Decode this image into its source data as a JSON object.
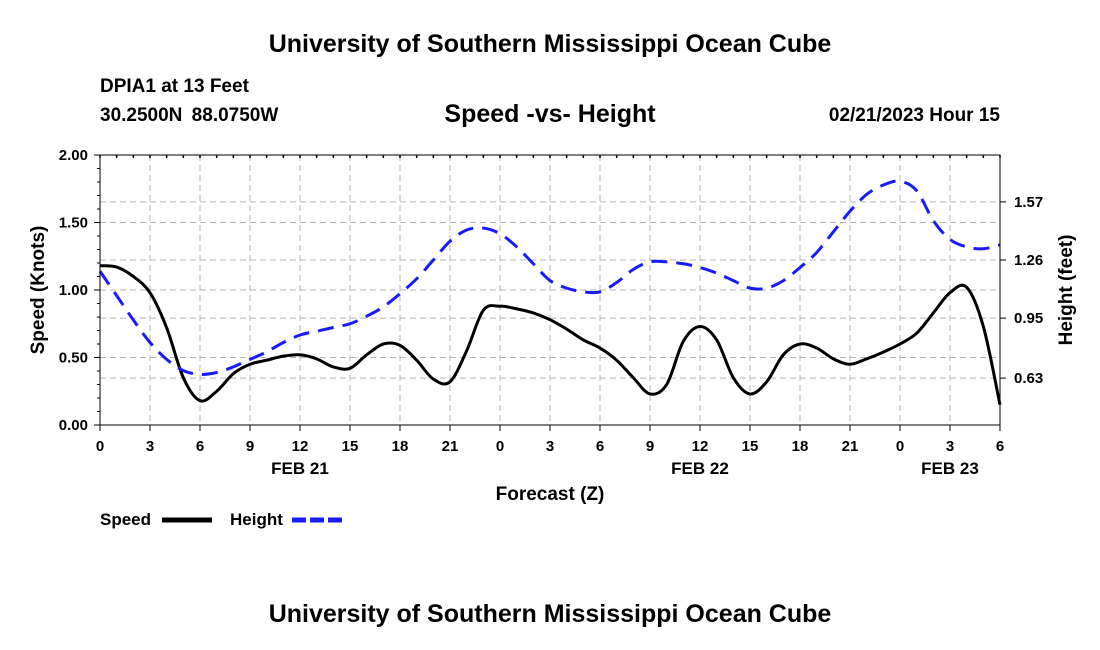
{
  "header": {
    "title": "University of Southern Mississippi Ocean Cube",
    "station": "DPIA1 at 13 Feet",
    "coordinates": "30.2500N  88.0750W",
    "chart_title": "Speed -vs- Height",
    "datetime": "02/21/2023 Hour 15"
  },
  "footer": {
    "title": "University of Southern Mississippi Ocean Cube"
  },
  "chart_data": {
    "type": "line",
    "title": "Speed -vs- Height",
    "xlabel": "Forecast (Z)",
    "ylabel": "Speed (Knots)",
    "y2label": "Height (feet)",
    "x_range": [
      0,
      54
    ],
    "ylim": [
      0,
      2.0
    ],
    "y2lim": [
      0.38,
      1.82
    ],
    "grid": true,
    "x_ticks": [
      0,
      3,
      6,
      9,
      12,
      15,
      18,
      21,
      24,
      27,
      30,
      33,
      36,
      39,
      42,
      45,
      48,
      51,
      54
    ],
    "x_tick_labels": [
      "0",
      "3",
      "6",
      "9",
      "12",
      "15",
      "18",
      "21",
      "0",
      "3",
      "6",
      "9",
      "12",
      "15",
      "18",
      "21",
      "0",
      "3",
      "6"
    ],
    "y_ticks": [
      0.0,
      0.5,
      1.0,
      1.5,
      2.0
    ],
    "y_tick_labels": [
      "0.00",
      "0.50",
      "1.00",
      "1.50",
      "2.00"
    ],
    "y2_ticks": [
      0.63,
      0.95,
      1.26,
      1.57
    ],
    "y2_tick_labels": [
      "0.63",
      "0.95",
      "1.26",
      "1.57"
    ],
    "date_labels": [
      {
        "x": 12,
        "label": "FEB 21"
      },
      {
        "x": 36,
        "label": "FEB 22"
      },
      {
        "x": 51,
        "label": "FEB 23"
      }
    ],
    "legend_position": "bottom-left",
    "series": [
      {
        "name": "Speed",
        "axis": "left",
        "color": "#000000",
        "style": "solid",
        "x": [
          0,
          1,
          2,
          3,
          4,
          5,
          6,
          7,
          8,
          9,
          10,
          11,
          12,
          13,
          14,
          15,
          16,
          17,
          18,
          19,
          20,
          21,
          22,
          23,
          24,
          25,
          26,
          27,
          28,
          29,
          30,
          31,
          32,
          33,
          34,
          35,
          36,
          37,
          38,
          39,
          40,
          41,
          42,
          43,
          44,
          45,
          46,
          47,
          48,
          49,
          50,
          51,
          52,
          53,
          54
        ],
        "values": [
          1.18,
          1.17,
          1.1,
          0.98,
          0.72,
          0.35,
          0.18,
          0.25,
          0.38,
          0.45,
          0.48,
          0.51,
          0.52,
          0.49,
          0.43,
          0.42,
          0.52,
          0.6,
          0.59,
          0.48,
          0.34,
          0.32,
          0.55,
          0.85,
          0.88,
          0.86,
          0.83,
          0.78,
          0.71,
          0.63,
          0.57,
          0.48,
          0.35,
          0.23,
          0.3,
          0.62,
          0.73,
          0.63,
          0.35,
          0.23,
          0.32,
          0.52,
          0.6,
          0.57,
          0.49,
          0.45,
          0.49,
          0.54,
          0.6,
          0.68,
          0.83,
          0.98,
          1.02,
          0.73,
          0.15
        ]
      },
      {
        "name": "Height",
        "axis": "right",
        "color": "#1a1aff",
        "style": "dashed",
        "x": [
          0,
          1,
          2,
          3,
          4,
          5,
          6,
          7,
          8,
          9,
          10,
          11,
          12,
          13,
          14,
          15,
          16,
          17,
          18,
          19,
          20,
          21,
          22,
          23,
          24,
          25,
          26,
          27,
          28,
          29,
          30,
          31,
          32,
          33,
          34,
          35,
          36,
          37,
          38,
          39,
          40,
          41,
          42,
          43,
          44,
          45,
          46,
          47,
          48,
          49,
          50,
          51,
          52,
          53,
          54
        ],
        "values": [
          1.2,
          1.07,
          0.94,
          0.82,
          0.73,
          0.67,
          0.65,
          0.66,
          0.69,
          0.73,
          0.77,
          0.82,
          0.86,
          0.88,
          0.9,
          0.92,
          0.96,
          1.01,
          1.08,
          1.16,
          1.26,
          1.36,
          1.42,
          1.43,
          1.4,
          1.33,
          1.24,
          1.15,
          1.11,
          1.09,
          1.09,
          1.14,
          1.21,
          1.25,
          1.25,
          1.24,
          1.22,
          1.19,
          1.15,
          1.11,
          1.11,
          1.15,
          1.22,
          1.3,
          1.41,
          1.52,
          1.61,
          1.66,
          1.68,
          1.63,
          1.47,
          1.37,
          1.33,
          1.32,
          1.34
        ]
      }
    ]
  }
}
